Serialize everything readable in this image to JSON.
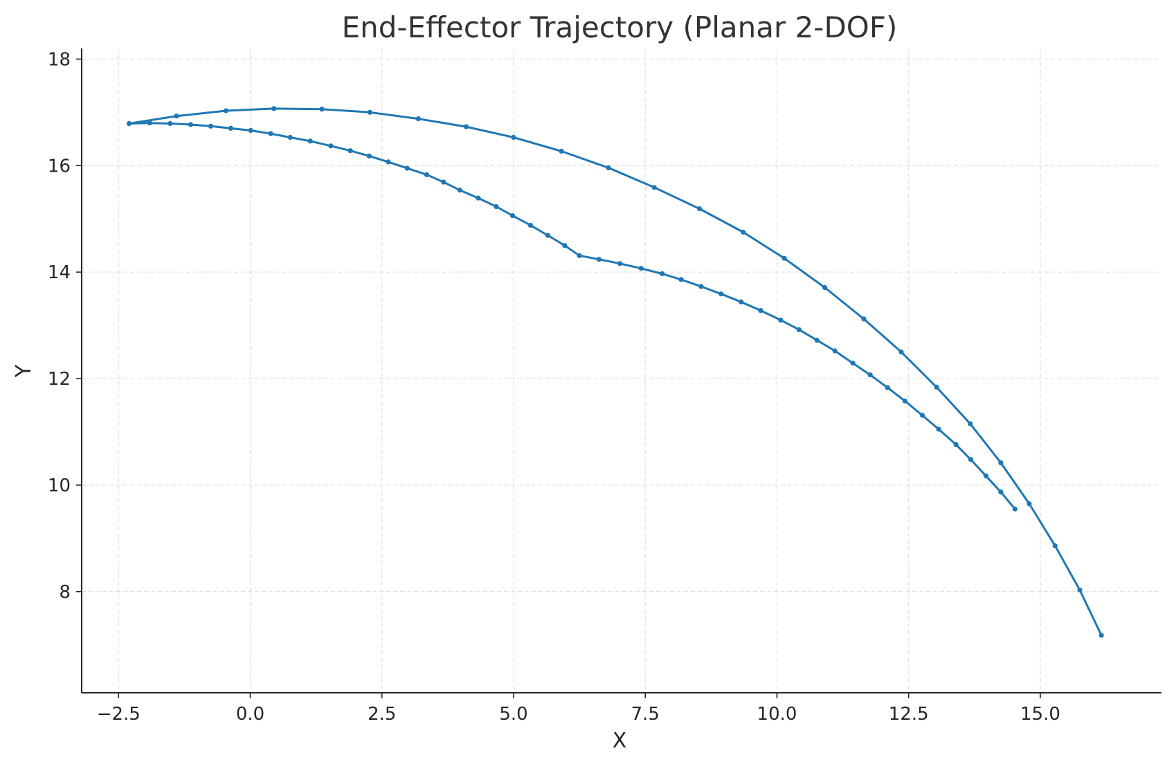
{
  "colors": {
    "series": "#1f77b4",
    "axis": "#262626",
    "grid": "#d9d9d9",
    "title": "#333333"
  },
  "chart_data": {
    "type": "line",
    "title": "End-Effector Trajectory (Planar 2-DOF)",
    "xlabel": "X",
    "ylabel": "Y",
    "xlim": [
      -3.2,
      17.3
    ],
    "ylim": [
      6.1,
      18.2
    ],
    "xticks": [
      -2.5,
      0.0,
      2.5,
      5.0,
      7.5,
      10.0,
      12.5,
      15.0
    ],
    "xtick_labels": [
      "−2.5",
      "0.0",
      "2.5",
      "5.0",
      "7.5",
      "10.0",
      "12.5",
      "15.0"
    ],
    "yticks": [
      8,
      10,
      12,
      14,
      16,
      18
    ],
    "ytick_labels": [
      "8",
      "10",
      "12",
      "14",
      "16",
      "18"
    ],
    "grid": true,
    "legend": "none",
    "markers": true,
    "series": [
      {
        "points": [
          [
            14.52,
            9.55
          ],
          [
            14.25,
            9.87
          ],
          [
            13.97,
            10.17
          ],
          [
            13.68,
            10.48
          ],
          [
            13.4,
            10.76
          ],
          [
            13.07,
            11.05
          ],
          [
            12.76,
            11.31
          ],
          [
            12.43,
            11.58
          ],
          [
            12.1,
            11.83
          ],
          [
            11.77,
            12.07
          ],
          [
            11.44,
            12.29
          ],
          [
            11.1,
            12.52
          ],
          [
            10.76,
            12.72
          ],
          [
            10.42,
            12.92
          ],
          [
            10.07,
            13.1
          ],
          [
            9.69,
            13.28
          ],
          [
            9.32,
            13.44
          ],
          [
            8.94,
            13.59
          ],
          [
            8.56,
            13.73
          ],
          [
            8.18,
            13.86
          ],
          [
            7.82,
            13.97
          ],
          [
            7.42,
            14.07
          ],
          [
            7.02,
            14.16
          ],
          [
            6.62,
            14.24
          ],
          [
            6.25,
            14.31
          ],
          [
            5.97,
            14.5
          ],
          [
            5.65,
            14.69
          ],
          [
            5.32,
            14.88
          ],
          [
            4.98,
            15.06
          ],
          [
            4.67,
            15.23
          ],
          [
            4.33,
            15.39
          ],
          [
            3.98,
            15.54
          ],
          [
            3.67,
            15.69
          ],
          [
            3.35,
            15.83
          ],
          [
            2.98,
            15.95
          ],
          [
            2.62,
            16.07
          ],
          [
            2.26,
            16.18
          ],
          [
            1.9,
            16.28
          ],
          [
            1.53,
            16.37
          ],
          [
            1.14,
            16.46
          ],
          [
            0.76,
            16.53
          ],
          [
            0.39,
            16.6
          ],
          [
            0.01,
            16.66
          ],
          [
            -0.37,
            16.7
          ],
          [
            -0.75,
            16.74
          ],
          [
            -1.13,
            16.77
          ],
          [
            -1.52,
            16.79
          ],
          [
            -1.91,
            16.8
          ],
          [
            -2.3,
            16.79
          ]
        ]
      },
      {
        "points": [
          [
            -2.3,
            16.79
          ],
          [
            -1.4,
            16.93
          ],
          [
            -0.46,
            17.03
          ],
          [
            0.45,
            17.07
          ],
          [
            1.36,
            17.06
          ],
          [
            2.27,
            17.0
          ],
          [
            3.19,
            16.88
          ],
          [
            4.1,
            16.73
          ],
          [
            5.0,
            16.53
          ],
          [
            5.91,
            16.27
          ],
          [
            6.8,
            15.96
          ],
          [
            7.67,
            15.59
          ],
          [
            8.53,
            15.19
          ],
          [
            9.36,
            14.75
          ],
          [
            10.14,
            14.26
          ],
          [
            10.91,
            13.71
          ],
          [
            11.65,
            13.12
          ],
          [
            12.36,
            12.5
          ],
          [
            13.03,
            11.84
          ],
          [
            13.67,
            11.15
          ],
          [
            14.25,
            10.42
          ],
          [
            14.79,
            9.65
          ],
          [
            15.28,
            8.86
          ],
          [
            15.75,
            8.03
          ],
          [
            16.16,
            7.18
          ]
        ]
      }
    ]
  }
}
